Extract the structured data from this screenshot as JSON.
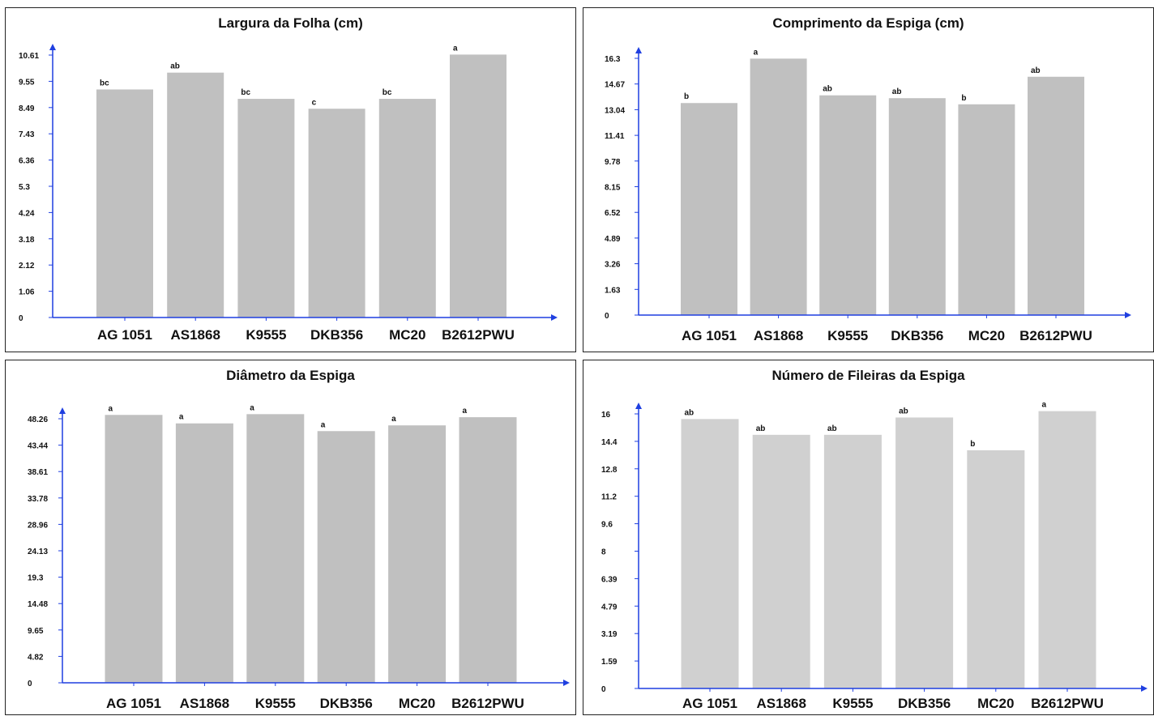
{
  "chart_data": [
    {
      "type": "bar",
      "title": "Largura da Folha (cm)",
      "categories": [
        "AG 1051",
        "AS1868",
        "K9555",
        "DKB356",
        "MC20",
        "B2612PWU"
      ],
      "values": [
        9.22,
        9.9,
        8.84,
        8.44,
        8.84,
        10.63
      ],
      "data_labels": [
        "bc",
        "ab",
        "bc",
        "c",
        "bc",
        "a"
      ],
      "yticks": [
        "0",
        "1.06",
        "2.12",
        "3.18",
        "4.24",
        "5.3",
        "6.36",
        "7.43",
        "8.49",
        "9.55",
        "10.61"
      ],
      "ylim": [
        0,
        10.61
      ],
      "bar_color": "#c0c0c0",
      "axis_color": "#1f3fe0"
    },
    {
      "type": "bar",
      "title": "Comprimento da Espiga (cm)",
      "categories": [
        "AG 1051",
        "AS1868",
        "K9555",
        "DKB356",
        "MC20",
        "B2612PWU"
      ],
      "values": [
        13.46,
        16.28,
        13.95,
        13.77,
        13.38,
        15.13
      ],
      "data_labels": [
        "b",
        "a",
        "ab",
        "ab",
        "b",
        "ab"
      ],
      "yticks": [
        "0",
        "1.63",
        "3.26",
        "4.89",
        "6.52",
        "8.15",
        "9.78",
        "11.41",
        "13.04",
        "14.67",
        "16.3"
      ],
      "ylim": [
        0,
        16.3
      ],
      "bar_color": "#c0c0c0",
      "axis_color": "#1f3fe0"
    },
    {
      "type": "bar",
      "title": "Diâmetro da Espiga",
      "categories": [
        "AG 1051",
        "AS1868",
        "K9555",
        "DKB356",
        "MC20",
        "B2612PWU"
      ],
      "values": [
        48.96,
        47.41,
        49.1,
        46.0,
        47.05,
        48.54
      ],
      "data_labels": [
        "a",
        "a",
        "a",
        "a",
        "a",
        "a"
      ],
      "yticks": [
        "0",
        "4.82",
        "9.65",
        "14.48",
        "19.3",
        "24.13",
        "28.96",
        "33.78",
        "38.61",
        "43.44",
        "48.26"
      ],
      "ylim": [
        0,
        48.26
      ],
      "bar_color": "#c0c0c0",
      "axis_color": "#1f3fe0"
    },
    {
      "type": "bar",
      "title": "Número de Fileiras da Espiga",
      "categories": [
        "AG 1051",
        "AS1868",
        "K9555",
        "DKB356",
        "MC20",
        "B2612PWU"
      ],
      "values": [
        15.7,
        14.78,
        14.78,
        15.79,
        13.88,
        16.16
      ],
      "data_labels": [
        "ab",
        "ab",
        "ab",
        "ab",
        "b",
        "a"
      ],
      "yticks": [
        "0",
        "1.59",
        "3.19",
        "4.79",
        "6.39",
        "8",
        "9.6",
        "11.2",
        "12.8",
        "14.4",
        "16"
      ],
      "ylim": [
        0,
        16
      ],
      "bar_color": "#d0d0d0",
      "axis_color": "#1f3fe0"
    }
  ]
}
